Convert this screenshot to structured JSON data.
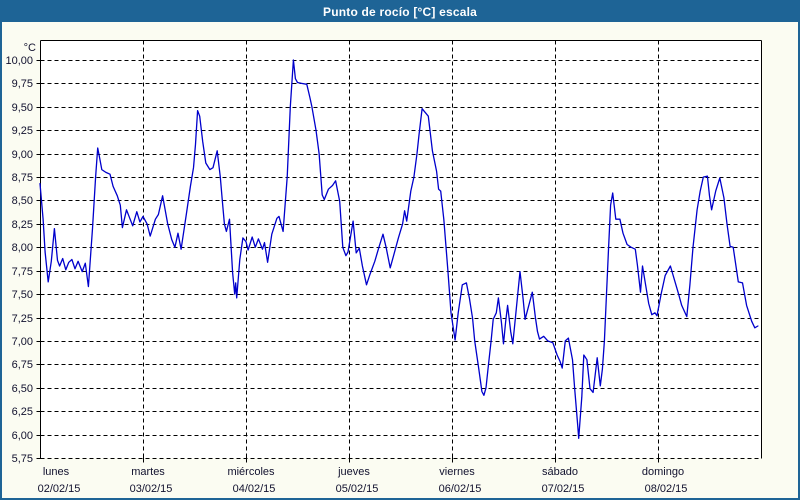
{
  "window_title": "Punto de rocío [°C] escala",
  "colors": {
    "accent": "#1e6496",
    "panel_bg": "#fbfcf2",
    "plot_bg": "#ffffff",
    "grid": "#000000",
    "line": "#0000cc",
    "text": "#11112e",
    "title_text": "#ffffff"
  },
  "chart_data": {
    "type": "line",
    "title": "Punto de rocío [°C] escala",
    "ylabel": "°C",
    "unit_label": "°C",
    "ylim": [
      5.75,
      10.0
    ],
    "ytick_step": 0.25,
    "grid": true,
    "legend": "none",
    "y_tick_labels": [
      "10,00",
      "9,75",
      "9,50",
      "9,25",
      "9,00",
      "8,75",
      "8,50",
      "8,25",
      "8,00",
      "7,75",
      "7,50",
      "7,25",
      "7,00",
      "6,75",
      "6,50",
      "6,25",
      "6,00",
      "5,75"
    ],
    "y_tick_values": [
      10.0,
      9.75,
      9.5,
      9.25,
      9.0,
      8.75,
      8.5,
      8.25,
      8.0,
      7.75,
      7.5,
      7.25,
      7.0,
      6.75,
      6.5,
      6.25,
      6.0,
      5.75
    ],
    "days": [
      {
        "name": "lunes",
        "date": "02/02/15"
      },
      {
        "name": "martes",
        "date": "03/02/15"
      },
      {
        "name": "miércoles",
        "date": "04/02/15"
      },
      {
        "name": "jueves",
        "date": "05/02/15"
      },
      {
        "name": "viernes",
        "date": "06/02/15"
      },
      {
        "name": "sábado",
        "date": "07/02/15"
      },
      {
        "name": "domingo",
        "date": "08/02/15"
      }
    ],
    "series": [
      {
        "name": "Punto de rocío",
        "x_unit": "days_from_2015-02-02",
        "points": [
          [
            0.0,
            8.68
          ],
          [
            0.03,
            8.3
          ],
          [
            0.05,
            7.95
          ],
          [
            0.08,
            7.63
          ],
          [
            0.11,
            7.85
          ],
          [
            0.14,
            8.2
          ],
          [
            0.17,
            7.86
          ],
          [
            0.19,
            7.8
          ],
          [
            0.22,
            7.88
          ],
          [
            0.25,
            7.76
          ],
          [
            0.28,
            7.84
          ],
          [
            0.31,
            7.87
          ],
          [
            0.34,
            7.77
          ],
          [
            0.37,
            7.85
          ],
          [
            0.41,
            7.74
          ],
          [
            0.44,
            7.83
          ],
          [
            0.47,
            7.58
          ],
          [
            0.51,
            8.2
          ],
          [
            0.54,
            8.75
          ],
          [
            0.56,
            9.06
          ],
          [
            0.58,
            8.95
          ],
          [
            0.6,
            8.83
          ],
          [
            0.64,
            8.8
          ],
          [
            0.68,
            8.78
          ],
          [
            0.71,
            8.65
          ],
          [
            0.75,
            8.55
          ],
          [
            0.78,
            8.45
          ],
          [
            0.8,
            8.21
          ],
          [
            0.84,
            8.4
          ],
          [
            0.9,
            8.23
          ],
          [
            0.94,
            8.38
          ],
          [
            0.97,
            8.27
          ],
          [
            1.0,
            8.33
          ],
          [
            1.04,
            8.25
          ],
          [
            1.07,
            8.12
          ],
          [
            1.12,
            8.3
          ],
          [
            1.15,
            8.35
          ],
          [
            1.19,
            8.55
          ],
          [
            1.24,
            8.25
          ],
          [
            1.28,
            8.08
          ],
          [
            1.31,
            8.0
          ],
          [
            1.34,
            8.15
          ],
          [
            1.37,
            7.98
          ],
          [
            1.42,
            8.35
          ],
          [
            1.46,
            8.65
          ],
          [
            1.49,
            8.85
          ],
          [
            1.51,
            9.1
          ],
          [
            1.53,
            9.46
          ],
          [
            1.55,
            9.4
          ],
          [
            1.58,
            9.13
          ],
          [
            1.61,
            8.9
          ],
          [
            1.65,
            8.83
          ],
          [
            1.68,
            8.85
          ],
          [
            1.72,
            9.03
          ],
          [
            1.75,
            8.75
          ],
          [
            1.77,
            8.5
          ],
          [
            1.79,
            8.25
          ],
          [
            1.81,
            8.17
          ],
          [
            1.84,
            8.3
          ],
          [
            1.87,
            7.73
          ],
          [
            1.89,
            7.5
          ],
          [
            1.9,
            7.62
          ],
          [
            1.91,
            7.46
          ],
          [
            1.94,
            7.87
          ],
          [
            1.97,
            8.1
          ],
          [
            2.0,
            8.06
          ],
          [
            2.02,
            7.97
          ],
          [
            2.06,
            8.11
          ],
          [
            2.09,
            8.0
          ],
          [
            2.12,
            8.09
          ],
          [
            2.16,
            7.98
          ],
          [
            2.18,
            8.05
          ],
          [
            2.21,
            7.84
          ],
          [
            2.25,
            8.14
          ],
          [
            2.3,
            8.31
          ],
          [
            2.32,
            8.33
          ],
          [
            2.36,
            8.17
          ],
          [
            2.4,
            8.75
          ],
          [
            2.43,
            9.5
          ],
          [
            2.46,
            10.0
          ],
          [
            2.48,
            9.8
          ],
          [
            2.5,
            9.76
          ],
          [
            2.54,
            9.75
          ],
          [
            2.59,
            9.74
          ],
          [
            2.62,
            9.6
          ],
          [
            2.64,
            9.5
          ],
          [
            2.68,
            9.25
          ],
          [
            2.71,
            9.0
          ],
          [
            2.74,
            8.56
          ],
          [
            2.76,
            8.51
          ],
          [
            2.8,
            8.62
          ],
          [
            2.84,
            8.66
          ],
          [
            2.87,
            8.71
          ],
          [
            2.91,
            8.49
          ],
          [
            2.94,
            8.0
          ],
          [
            2.97,
            7.91
          ],
          [
            2.99,
            7.95
          ],
          [
            3.04,
            8.28
          ],
          [
            3.07,
            7.94
          ],
          [
            3.1,
            7.99
          ],
          [
            3.13,
            7.8
          ],
          [
            3.17,
            7.6
          ],
          [
            3.2,
            7.7
          ],
          [
            3.25,
            7.85
          ],
          [
            3.29,
            8.0
          ],
          [
            3.33,
            8.14
          ],
          [
            3.36,
            8.0
          ],
          [
            3.4,
            7.78
          ],
          [
            3.43,
            7.9
          ],
          [
            3.48,
            8.1
          ],
          [
            3.52,
            8.25
          ],
          [
            3.54,
            8.39
          ],
          [
            3.56,
            8.28
          ],
          [
            3.6,
            8.6
          ],
          [
            3.63,
            8.75
          ],
          [
            3.66,
            9.0
          ],
          [
            3.68,
            9.2
          ],
          [
            3.71,
            9.48
          ],
          [
            3.74,
            9.44
          ],
          [
            3.77,
            9.4
          ],
          [
            3.81,
            9.03
          ],
          [
            3.85,
            8.81
          ],
          [
            3.87,
            8.62
          ],
          [
            3.89,
            8.6
          ],
          [
            3.92,
            8.3
          ],
          [
            3.96,
            7.75
          ],
          [
            3.99,
            7.3
          ],
          [
            4.03,
            7.01
          ],
          [
            4.06,
            7.3
          ],
          [
            4.1,
            7.6
          ],
          [
            4.14,
            7.62
          ],
          [
            4.17,
            7.45
          ],
          [
            4.2,
            7.24
          ],
          [
            4.22,
            7.0
          ],
          [
            4.26,
            6.7
          ],
          [
            4.29,
            6.46
          ],
          [
            4.31,
            6.42
          ],
          [
            4.33,
            6.5
          ],
          [
            4.35,
            6.71
          ],
          [
            4.38,
            7.0
          ],
          [
            4.4,
            7.23
          ],
          [
            4.43,
            7.3
          ],
          [
            4.45,
            7.46
          ],
          [
            4.48,
            7.2
          ],
          [
            4.5,
            6.97
          ],
          [
            4.52,
            7.2
          ],
          [
            4.54,
            7.38
          ],
          [
            4.57,
            7.1
          ],
          [
            4.59,
            6.97
          ],
          [
            4.62,
            7.3
          ],
          [
            4.66,
            7.74
          ],
          [
            4.69,
            7.45
          ],
          [
            4.71,
            7.23
          ],
          [
            4.75,
            7.4
          ],
          [
            4.78,
            7.52
          ],
          [
            4.81,
            7.25
          ],
          [
            4.83,
            7.1
          ],
          [
            4.85,
            7.02
          ],
          [
            4.89,
            7.05
          ],
          [
            4.93,
            7.0
          ],
          [
            4.98,
            6.98
          ],
          [
            5.02,
            6.85
          ],
          [
            5.05,
            6.78
          ],
          [
            5.07,
            6.71
          ],
          [
            5.1,
            7.0
          ],
          [
            5.13,
            7.03
          ],
          [
            5.17,
            6.8
          ],
          [
            5.19,
            6.5
          ],
          [
            5.22,
            6.1
          ],
          [
            5.23,
            5.96
          ],
          [
            5.26,
            6.4
          ],
          [
            5.28,
            6.85
          ],
          [
            5.31,
            6.8
          ],
          [
            5.34,
            6.49
          ],
          [
            5.37,
            6.45
          ],
          [
            5.41,
            6.82
          ],
          [
            5.44,
            6.52
          ],
          [
            5.46,
            6.7
          ],
          [
            5.48,
            7.0
          ],
          [
            5.5,
            7.5
          ],
          [
            5.52,
            8.0
          ],
          [
            5.54,
            8.45
          ],
          [
            5.56,
            8.58
          ],
          [
            5.59,
            8.3
          ],
          [
            5.63,
            8.3
          ],
          [
            5.66,
            8.15
          ],
          [
            5.7,
            8.03
          ],
          [
            5.74,
            8.0
          ],
          [
            5.78,
            7.98
          ],
          [
            5.8,
            7.81
          ],
          [
            5.83,
            7.52
          ],
          [
            5.85,
            7.8
          ],
          [
            5.88,
            7.6
          ],
          [
            5.91,
            7.4
          ],
          [
            5.94,
            7.28
          ],
          [
            5.97,
            7.3
          ],
          [
            5.99,
            7.27
          ],
          [
            6.03,
            7.5
          ],
          [
            6.07,
            7.7
          ],
          [
            6.12,
            7.8
          ],
          [
            6.16,
            7.65
          ],
          [
            6.2,
            7.5
          ],
          [
            6.23,
            7.38
          ],
          [
            6.28,
            7.26
          ],
          [
            6.31,
            7.6
          ],
          [
            6.34,
            8.0
          ],
          [
            6.38,
            8.4
          ],
          [
            6.41,
            8.6
          ],
          [
            6.44,
            8.75
          ],
          [
            6.48,
            8.76
          ],
          [
            6.5,
            8.55
          ],
          [
            6.52,
            8.4
          ],
          [
            6.56,
            8.6
          ],
          [
            6.6,
            8.74
          ],
          [
            6.64,
            8.53
          ],
          [
            6.67,
            8.25
          ],
          [
            6.7,
            8.01
          ],
          [
            6.73,
            8.0
          ],
          [
            6.78,
            7.63
          ],
          [
            6.82,
            7.62
          ],
          [
            6.86,
            7.38
          ],
          [
            6.91,
            7.21
          ],
          [
            6.94,
            7.14
          ],
          [
            6.97,
            7.16
          ]
        ]
      }
    ]
  }
}
